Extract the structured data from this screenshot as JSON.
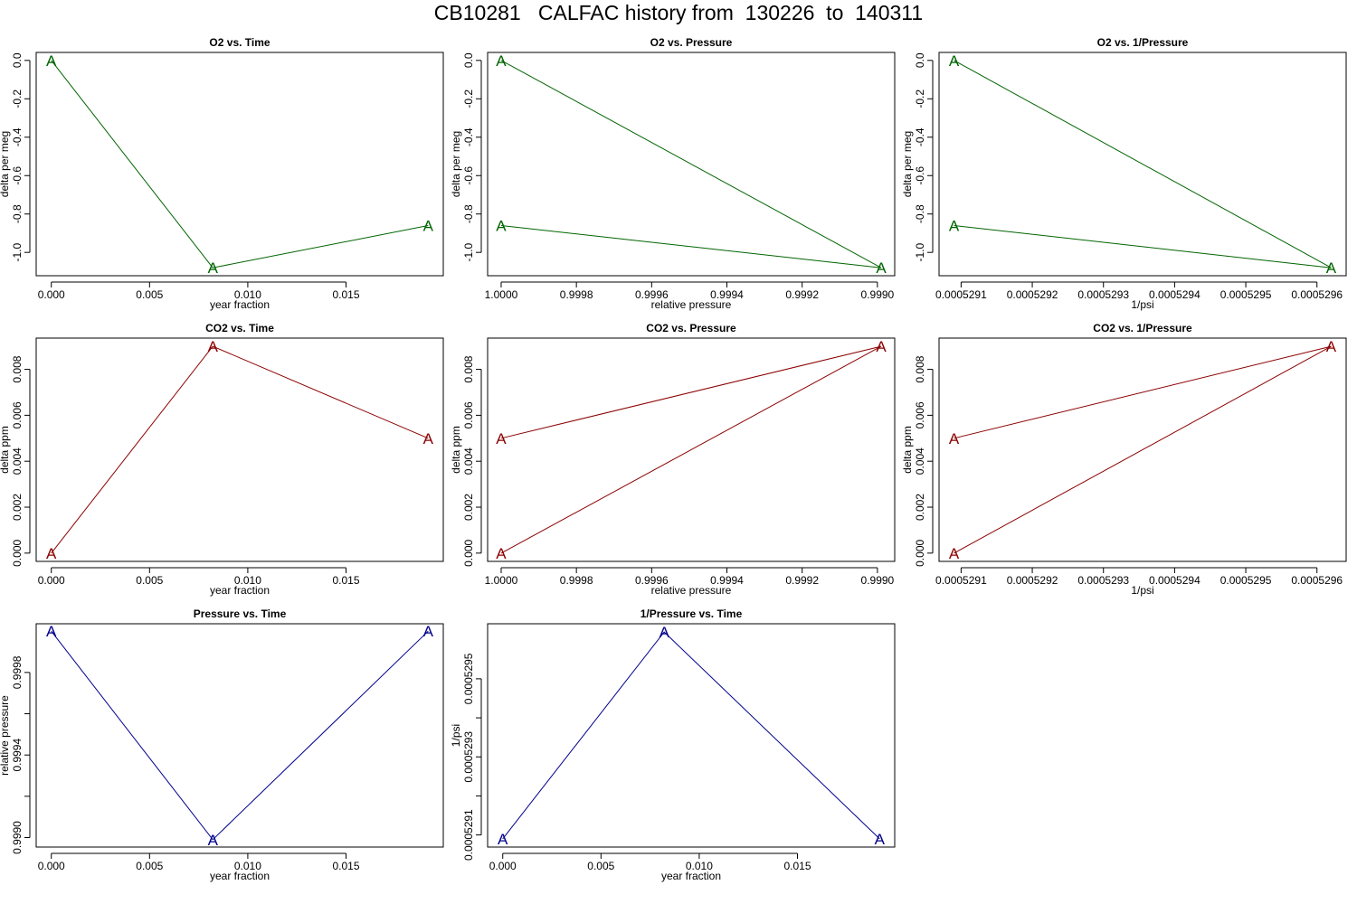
{
  "page_title": "CB10281   CALFAC history from  130226  to  140311",
  "chart_data": [
    {
      "type": "line",
      "title": "O2 vs. Time",
      "xlabel": "year fraction",
      "ylabel": "delta per meg",
      "color": "#006400",
      "marker": "A",
      "x": [
        0.0,
        0.00822,
        0.01918
      ],
      "y": [
        0.0,
        -1.08,
        -0.86
      ],
      "xlim": [
        -0.00077,
        0.01995
      ],
      "ylim": [
        -1.1215,
        0.0415
      ],
      "xticks": [
        0.0,
        0.005,
        0.01,
        0.015
      ],
      "xtick_labels": [
        "0.000",
        "0.005",
        "0.010",
        "0.015"
      ],
      "yticks": [
        0.0,
        -0.2,
        -0.4,
        -0.6,
        -0.8,
        -1.0
      ],
      "ytick_labels": [
        "0.0",
        "-0.2",
        "-0.4",
        "-0.6",
        "-0.8",
        "-1.0"
      ]
    },
    {
      "type": "line",
      "title": "O2 vs. Pressure",
      "xlabel": "relative pressure",
      "ylabel": "delta per meg",
      "color": "#006400",
      "marker": "A",
      "x": [
        1.0,
        0.99899,
        1.0
      ],
      "y": [
        0.0,
        -1.08,
        -0.86
      ],
      "xlim": [
        1.000036,
        0.998954
      ],
      "ylim": [
        -1.1215,
        0.0415
      ],
      "xticks": [
        1.0,
        0.9998,
        0.9996,
        0.9994,
        0.9992,
        0.999
      ],
      "xtick_labels": [
        "1.0000",
        "0.9998",
        "0.9996",
        "0.9994",
        "0.9992",
        "0.9990"
      ],
      "yticks": [
        0.0,
        -0.2,
        -0.4,
        -0.6,
        -0.8,
        -1.0
      ],
      "ytick_labels": [
        "0.0",
        "-0.2",
        "-0.4",
        "-0.6",
        "-0.8",
        "-1.0"
      ]
    },
    {
      "type": "line",
      "title": "O2 vs. 1/Pressure",
      "xlabel": "1/psi",
      "ylabel": "delta per meg",
      "color": "#006400",
      "marker": "A",
      "x": [
        0.00052909,
        0.00052962,
        0.00052909
      ],
      "y": [
        0.0,
        -1.08,
        -0.86
      ],
      "xlim": [
        0.000529069,
        0.000529641
      ],
      "ylim": [
        -1.1215,
        0.0415
      ],
      "xticks": [
        0.0005291,
        0.0005292,
        0.0005293,
        0.0005294,
        0.0005295,
        0.0005296
      ],
      "xtick_labels": [
        "0.0005291",
        "0.0005292",
        "0.0005293",
        "0.0005294",
        "0.0005295",
        "0.0005296"
      ],
      "yticks": [
        0.0,
        -0.2,
        -0.4,
        -0.6,
        -0.8,
        -1.0
      ],
      "ytick_labels": [
        "0.0",
        "-0.2",
        "-0.4",
        "-0.6",
        "-0.8",
        "-1.0"
      ]
    },
    {
      "type": "line",
      "title": "CO2 vs. Time",
      "xlabel": "year fraction",
      "ylabel": "delta ppm",
      "color": "#8b0000",
      "marker": "A",
      "x": [
        0.0,
        0.00822,
        0.01918
      ],
      "y": [
        0.0,
        0.009,
        0.005
      ],
      "xlim": [
        -0.00077,
        0.01995
      ],
      "ylim": [
        -0.00036,
        0.00936
      ],
      "xticks": [
        0.0,
        0.005,
        0.01,
        0.015
      ],
      "xtick_labels": [
        "0.000",
        "0.005",
        "0.010",
        "0.015"
      ],
      "yticks": [
        0.0,
        0.002,
        0.004,
        0.006,
        0.008
      ],
      "ytick_labels": [
        "0.000",
        "0.002",
        "0.004",
        "0.006",
        "0.008"
      ]
    },
    {
      "type": "line",
      "title": "CO2 vs. Pressure",
      "xlabel": "relative pressure",
      "ylabel": "delta ppm",
      "color": "#8b0000",
      "marker": "A",
      "x": [
        1.0,
        0.99899,
        1.0
      ],
      "y": [
        0.0,
        0.009,
        0.005
      ],
      "xlim": [
        1.000036,
        0.998954
      ],
      "ylim": [
        -0.00036,
        0.00936
      ],
      "xticks": [
        1.0,
        0.9998,
        0.9996,
        0.9994,
        0.9992,
        0.999
      ],
      "xtick_labels": [
        "1.0000",
        "0.9998",
        "0.9996",
        "0.9994",
        "0.9992",
        "0.9990"
      ],
      "yticks": [
        0.0,
        0.002,
        0.004,
        0.006,
        0.008
      ],
      "ytick_labels": [
        "0.000",
        "0.002",
        "0.004",
        "0.006",
        "0.008"
      ]
    },
    {
      "type": "line",
      "title": "CO2 vs. 1/Pressure",
      "xlabel": "1/psi",
      "ylabel": "delta ppm",
      "color": "#8b0000",
      "marker": "A",
      "x": [
        0.00052909,
        0.00052962,
        0.00052909
      ],
      "y": [
        0.0,
        0.009,
        0.005
      ],
      "xlim": [
        0.000529069,
        0.000529641
      ],
      "ylim": [
        -0.00036,
        0.00936
      ],
      "xticks": [
        0.0005291,
        0.0005292,
        0.0005293,
        0.0005294,
        0.0005295,
        0.0005296
      ],
      "xtick_labels": [
        "0.0005291",
        "0.0005292",
        "0.0005293",
        "0.0005294",
        "0.0005295",
        "0.0005296"
      ],
      "yticks": [
        0.0,
        0.002,
        0.004,
        0.006,
        0.008
      ],
      "ytick_labels": [
        "0.000",
        "0.002",
        "0.004",
        "0.006",
        "0.008"
      ]
    },
    {
      "type": "line",
      "title": "Pressure vs. Time",
      "xlabel": "year fraction",
      "ylabel": "relative pressure",
      "color": "#00008b",
      "marker": "A",
      "x": [
        0.0,
        0.00822,
        0.01918
      ],
      "y": [
        1.0,
        0.99899,
        1.0
      ],
      "xlim": [
        -0.00077,
        0.01995
      ],
      "ylim": [
        0.998954,
        1.000036
      ],
      "xticks": [
        0.0,
        0.005,
        0.01,
        0.015
      ],
      "xtick_labels": [
        "0.000",
        "0.005",
        "0.010",
        "0.015"
      ],
      "yticks": [
        0.999,
        0.9992,
        0.9994,
        0.9996,
        0.9998
      ],
      "ytick_labels": [
        "0.9990",
        "",
        "0.9994",
        "",
        "0.9998"
      ]
    },
    {
      "type": "line",
      "title": "1/Pressure vs. Time",
      "xlabel": "year fraction",
      "ylabel": "1/psi",
      "color": "#00008b",
      "marker": "A",
      "x": [
        0.0,
        0.00822,
        0.01918
      ],
      "y": [
        0.00052909,
        0.00052962,
        0.00052909
      ],
      "xlim": [
        -0.00077,
        0.01995
      ],
      "ylim": [
        0.000529069,
        0.000529641
      ],
      "xticks": [
        0.0,
        0.005,
        0.01,
        0.015
      ],
      "xtick_labels": [
        "0.000",
        "0.005",
        "0.010",
        "0.015"
      ],
      "yticks": [
        0.0005291,
        0.0005292,
        0.0005293,
        0.0005294,
        0.0005295
      ],
      "ytick_labels": [
        "0.0005291",
        "",
        "0.0005293",
        "",
        "0.0005295"
      ]
    }
  ]
}
